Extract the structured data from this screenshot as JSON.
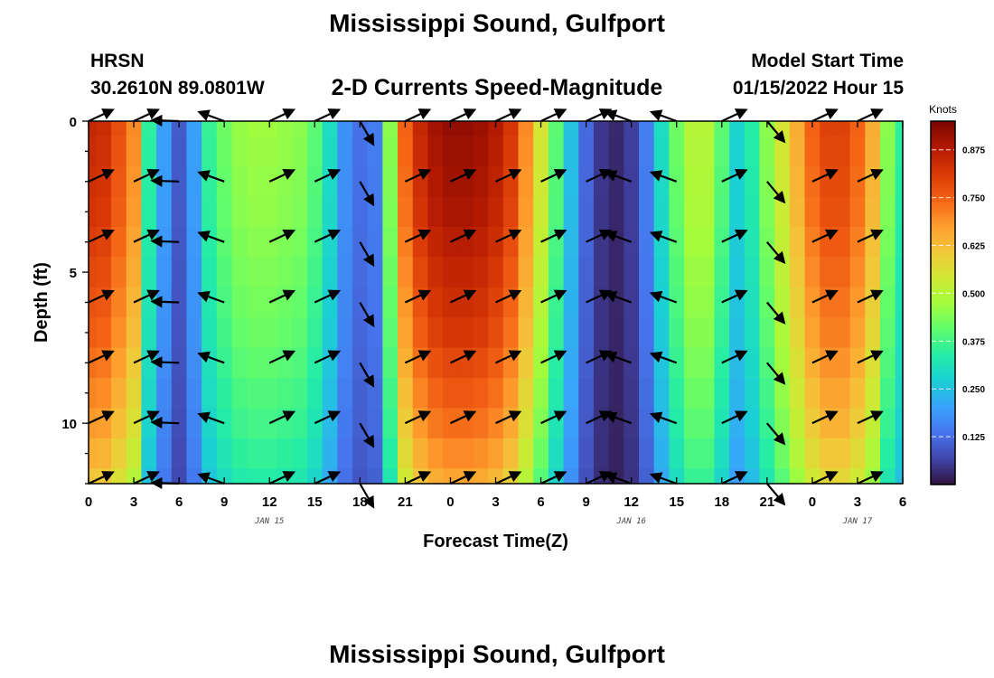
{
  "header": {
    "title": "Mississippi Sound, Gulfport",
    "station": "HRSN",
    "coordinates": "30.2610N  89.0801W",
    "subtitle": "2-D Currents Speed-Magnitude",
    "model_start_label": "Model Start Time",
    "model_start_value": "01/15/2022 Hour 15"
  },
  "footer": {
    "title": "Mississippi Sound, Gulfport"
  },
  "chart_data": {
    "type": "heatmap",
    "title": "2-D Currents Speed-Magnitude",
    "xlabel": "Forecast Time(Z)",
    "ylabel": "Depth (ft)",
    "xlim": [
      0,
      54
    ],
    "ylim": [
      12,
      0
    ],
    "x_tick_values": [
      0,
      3,
      6,
      9,
      12,
      15,
      18,
      21,
      24,
      27,
      30,
      33,
      36,
      39,
      42,
      45,
      48,
      51,
      54
    ],
    "x_tick_labels": [
      "0",
      "3",
      "6",
      "9",
      "12",
      "15",
      "18",
      "21",
      "0",
      "3",
      "6",
      "9",
      "12",
      "15",
      "18",
      "21",
      "0",
      "3",
      "6"
    ],
    "y_ticks": [
      0,
      5,
      10
    ],
    "date_labels": [
      {
        "x": 12,
        "label": "JAN 15"
      },
      {
        "x": 36,
        "label": "JAN 16"
      },
      {
        "x": 51,
        "label": "JAN 17"
      }
    ],
    "colorbar": {
      "units": "Knots",
      "range": [
        0,
        0.95
      ],
      "ticks": [
        0.125,
        0.25,
        0.375,
        0.5,
        0.625,
        0.75,
        0.875
      ],
      "tick_labels": [
        "0.125",
        "0.250",
        "0.375",
        "0.500",
        "0.625",
        "0.750",
        "0.875"
      ],
      "colormap": [
        "#30123b",
        "#4145ab",
        "#4675ed",
        "#39a2fc",
        "#1bcfd4",
        "#24eca6",
        "#61fc6c",
        "#a4fc3b",
        "#d1e834",
        "#f3c63a",
        "#fe9b2d",
        "#f36315",
        "#d93806",
        "#b11901",
        "#7a0402"
      ]
    },
    "time_hours": [
      0,
      1,
      2,
      3,
      4,
      5,
      6,
      7,
      8,
      9,
      10,
      11,
      12,
      13,
      14,
      15,
      16,
      17,
      18,
      19,
      20,
      21,
      22,
      23,
      24,
      25,
      26,
      27,
      28,
      29,
      30,
      31,
      32,
      33,
      34,
      35,
      36,
      37,
      38,
      39,
      40,
      41,
      42,
      43,
      44,
      45,
      46,
      47,
      48,
      49,
      50,
      51,
      52,
      53,
      54
    ],
    "surface_speed_knots": [
      0.85,
      0.84,
      0.78,
      0.7,
      0.35,
      0.2,
      0.1,
      0.2,
      0.36,
      0.42,
      0.46,
      0.47,
      0.47,
      0.46,
      0.45,
      0.4,
      0.3,
      0.18,
      0.13,
      0.15,
      0.45,
      0.75,
      0.85,
      0.9,
      0.92,
      0.92,
      0.91,
      0.88,
      0.82,
      0.7,
      0.55,
      0.4,
      0.25,
      0.12,
      0.05,
      0.03,
      0.06,
      0.15,
      0.3,
      0.42,
      0.5,
      0.5,
      0.4,
      0.28,
      0.34,
      0.45,
      0.55,
      0.65,
      0.75,
      0.8,
      0.8,
      0.75,
      0.65,
      0.45,
      0.35
    ],
    "depth_profile_factor": [
      1.0,
      0.99,
      0.98,
      0.97,
      0.95,
      0.93,
      0.91,
      0.89,
      0.86,
      0.83,
      0.8,
      0.76,
      0.72
    ],
    "vector_times": [
      0,
      3,
      6,
      9,
      12,
      15,
      18,
      21,
      24,
      27,
      30,
      33,
      36,
      39,
      42,
      45,
      48,
      51
    ],
    "vector_depths": [
      0,
      2,
      4,
      6,
      8,
      10,
      12
    ],
    "vector_directions_deg": [
      25,
      25,
      178,
      160,
      25,
      25,
      -60,
      25,
      25,
      25,
      25,
      25,
      160,
      160,
      25,
      -50,
      25,
      25
    ],
    "vector_length": 0.8
  },
  "colors": {
    "background": "#ffffff",
    "text": "#000000",
    "arrow": "#000000"
  }
}
